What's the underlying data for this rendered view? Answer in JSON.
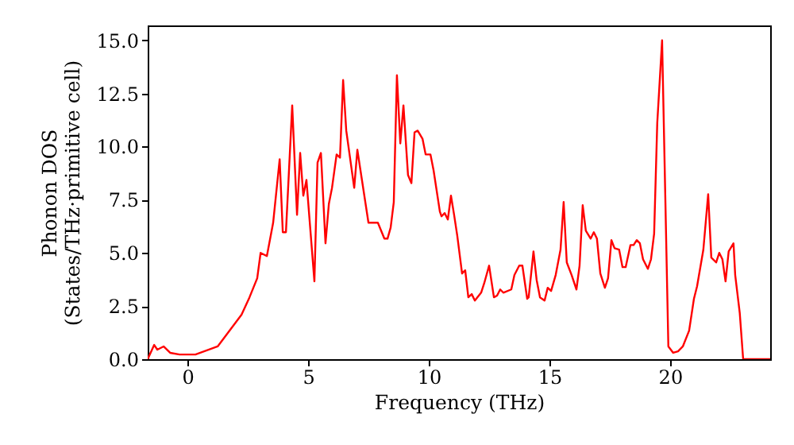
{
  "chart_data": {
    "type": "line",
    "xlabel": "Frequency (THz)",
    "ylabel": "Phonon DOS\n(States/THz·primitive cell)",
    "xlim": [
      -1.65,
      24.15
    ],
    "ylim": [
      0,
      15.7
    ],
    "xticks": [
      0,
      5,
      10,
      15,
      20
    ],
    "yticks": [
      {
        "value": 0,
        "label": "0.0"
      },
      {
        "value": 2.5,
        "label": "2.5"
      },
      {
        "value": 5,
        "label": "5.0"
      },
      {
        "value": 7.5,
        "label": "7.5"
      },
      {
        "value": 10,
        "label": "10.0"
      },
      {
        "value": 12.5,
        "label": "12.5"
      },
      {
        "value": 15,
        "label": "15.0"
      }
    ],
    "series": [
      {
        "color": "#ff0000",
        "x": [
          -1.65,
          -1.38,
          -1.25,
          -0.99,
          -0.72,
          -0.33,
          0.33,
          1.25,
          1.64,
          2.24,
          2.57,
          2.89,
          3.03,
          3.29,
          3.55,
          3.82,
          3.95,
          4.08,
          4.34,
          4.54,
          4.67,
          4.8,
          4.93,
          5.26,
          5.39,
          5.53,
          5.72,
          5.86,
          5.99,
          6.18,
          6.32,
          6.45,
          6.58,
          6.91,
          7.04,
          7.17,
          7.5,
          7.7,
          7.89,
          8.16,
          8.29,
          8.42,
          8.55,
          8.68,
          8.82,
          8.95,
          9.14,
          9.28,
          9.41,
          9.54,
          9.74,
          9.87,
          10.07,
          10.2,
          10.46,
          10.53,
          10.66,
          10.79,
          10.92,
          11.05,
          11.18,
          11.38,
          11.51,
          11.64,
          11.78,
          11.91,
          12.17,
          12.3,
          12.5,
          12.7,
          12.83,
          12.96,
          13.09,
          13.42,
          13.55,
          13.75,
          13.88,
          14.08,
          14.14,
          14.34,
          14.47,
          14.61,
          14.8,
          14.93,
          15.07,
          15.26,
          15.46,
          15.59,
          15.72,
          15.92,
          16.12,
          16.25,
          16.38,
          16.51,
          16.71,
          16.84,
          16.97,
          17.11,
          17.3,
          17.43,
          17.57,
          17.7,
          17.89,
          18.03,
          18.16,
          18.36,
          18.49,
          18.62,
          18.75,
          18.88,
          19.08,
          19.21,
          19.34,
          19.47,
          19.67,
          19.74,
          19.93,
          20.13,
          20.33,
          20.53,
          20.79,
          20.99,
          21.12,
          21.38,
          21.58,
          21.71,
          21.91,
          22.04,
          22.17,
          22.3,
          22.43,
          22.63,
          22.7,
          22.89,
          23.03,
          24.15
        ],
        "values": [
          0,
          0.67,
          0.45,
          0.6,
          0.3,
          0.22,
          0.22,
          0.6,
          1.19,
          2.09,
          2.91,
          3.81,
          5.0,
          4.85,
          6.42,
          9.4,
          5.97,
          5.97,
          11.94,
          6.79,
          9.7,
          7.69,
          8.43,
          3.66,
          9.25,
          9.7,
          5.45,
          7.31,
          8.06,
          9.63,
          9.48,
          13.13,
          10.75,
          8.06,
          9.85,
          8.88,
          6.42,
          6.42,
          6.42,
          5.67,
          5.67,
          6.19,
          7.39,
          13.36,
          10.15,
          11.94,
          8.66,
          8.28,
          10.67,
          10.75,
          10.37,
          9.63,
          9.63,
          8.88,
          6.94,
          6.72,
          6.87,
          6.57,
          7.69,
          6.79,
          5.82,
          4.03,
          4.18,
          2.91,
          3.06,
          2.76,
          3.13,
          3.58,
          4.4,
          2.91,
          2.99,
          3.28,
          3.13,
          3.28,
          3.96,
          4.4,
          4.4,
          2.84,
          2.91,
          5.07,
          3.73,
          2.91,
          2.76,
          3.36,
          3.21,
          3.96,
          5.15,
          7.39,
          4.55,
          3.96,
          3.28,
          4.4,
          7.24,
          6.04,
          5.67,
          5.97,
          5.67,
          4.03,
          3.36,
          3.81,
          5.6,
          5.22,
          5.15,
          4.33,
          4.33,
          5.37,
          5.37,
          5.6,
          5.45,
          4.7,
          4.25,
          4.7,
          5.9,
          11.12,
          15.0,
          11.12,
          0.6,
          0.3,
          0.37,
          0.6,
          1.34,
          2.84,
          3.43,
          5.15,
          7.76,
          4.78,
          4.55,
          5.0,
          4.7,
          3.66,
          5.07,
          5.45,
          3.96,
          2.16,
          0,
          0
        ]
      }
    ]
  }
}
